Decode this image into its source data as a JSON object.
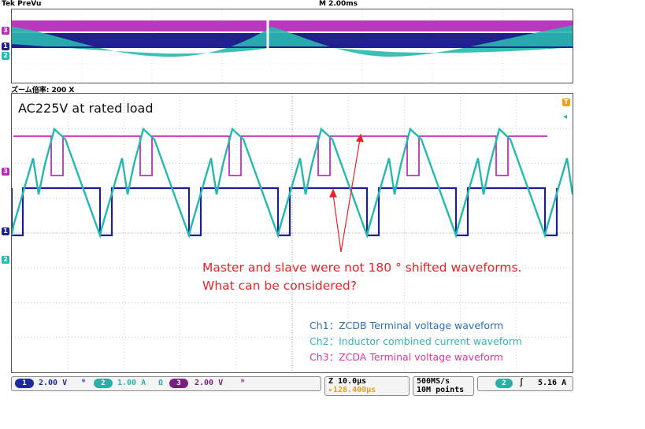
{
  "header": {
    "brand": "Tek PreVu",
    "timebase_top": "M 2.00ms",
    "zoom_label": "ズーム倍率: 200 X"
  },
  "overview": {
    "channel_markers": [
      "3",
      "1",
      "2"
    ]
  },
  "main": {
    "condition_text": "AC225V at rated load",
    "channel_markers": [
      "3",
      "1",
      "2"
    ],
    "trigger_marker": "T",
    "annotation_line1": "Master and slave were not 180 °   shifted waveforms.",
    "annotation_line2": "What can be considered?",
    "legend": [
      {
        "text": "Ch1：ZCDB Terminal voltage waveform",
        "color": "#2b6fb6"
      },
      {
        "text": "Ch2：Inductor combined current waveform",
        "color": "#30b5b8"
      },
      {
        "text": "Ch3：ZCDA Terminal voltage waveform",
        "color": "#e0359a"
      }
    ]
  },
  "status_bar": {
    "ch1": {
      "num": "1",
      "value": "2.00 V",
      "suffix": "ᴺ",
      "color": "#1c2a9c"
    },
    "ch2": {
      "num": "2",
      "value": "1.00 A",
      "suffix": "Ω",
      "color": "#2bb0a8"
    },
    "ch3": {
      "num": "3",
      "value": "2.00 V",
      "suffix": "ᴺ",
      "color": "#7a1e80"
    },
    "zoom_time": "Z 10.0μs",
    "zoom_pos": "▸128.400μs",
    "sample_rate": "500MS/s",
    "record_length": "10M points",
    "trigger_ch": "2",
    "trigger_level": "5.16 A"
  },
  "colors": {
    "ch1": "#1c1f8e",
    "ch2": "#25b8b0",
    "ch3": "#c02fc0",
    "annotation": "#e8232a"
  }
}
